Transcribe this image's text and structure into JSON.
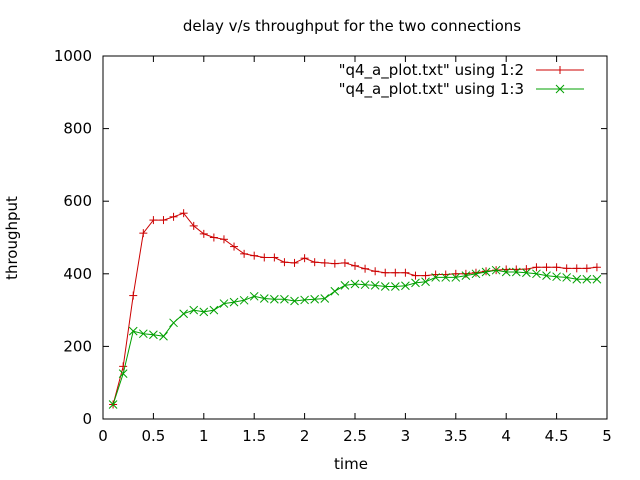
{
  "chart_data": {
    "type": "line",
    "title": "delay v/s throughput for the two connections",
    "xlabel": "time",
    "ylabel": "throughput",
    "xlim": [
      0,
      5
    ],
    "ylim": [
      0,
      1000
    ],
    "xticks": [
      0,
      0.5,
      1,
      1.5,
      2,
      2.5,
      3,
      3.5,
      4,
      4.5,
      5
    ],
    "xtick_labels": [
      "0",
      "0.5",
      "1",
      "1.5",
      "2",
      "2.5",
      "3",
      "3.5",
      "4",
      "4.5",
      "5"
    ],
    "yticks": [
      0,
      200,
      400,
      600,
      800,
      1000
    ],
    "ytick_labels": [
      "0",
      "200",
      "400",
      "600",
      "800",
      "1000"
    ],
    "grid": false,
    "legend_position": "top-right",
    "series": [
      {
        "name": "\"q4_a_plot.txt\" using 1:2",
        "color": "#cc0000",
        "marker": "plus",
        "x": [
          0.1,
          0.2,
          0.3,
          0.4,
          0.5,
          0.6,
          0.7,
          0.8,
          0.9,
          1.0,
          1.1,
          1.2,
          1.3,
          1.4,
          1.5,
          1.6,
          1.7,
          1.8,
          1.9,
          2.0,
          2.1,
          2.2,
          2.3,
          2.4,
          2.5,
          2.6,
          2.7,
          2.8,
          2.9,
          3.0,
          3.1,
          3.2,
          3.3,
          3.4,
          3.5,
          3.6,
          3.7,
          3.8,
          3.9,
          4.0,
          4.1,
          4.2,
          4.3,
          4.4,
          4.5,
          4.6,
          4.7,
          4.8,
          4.9
        ],
        "y": [
          40,
          145,
          340,
          512,
          548,
          548,
          557,
          567,
          532,
          510,
          500,
          495,
          475,
          455,
          450,
          445,
          445,
          432,
          430,
          443,
          432,
          430,
          428,
          430,
          422,
          414,
          407,
          403,
          403,
          403,
          395,
          395,
          398,
          398,
          400,
          400,
          403,
          407,
          410,
          412,
          412,
          413,
          418,
          418,
          418,
          415,
          415,
          415,
          418
        ]
      },
      {
        "name": "\"q4_a_plot.txt\" using 1:3",
        "color": "#00a000",
        "marker": "x",
        "x": [
          0.1,
          0.2,
          0.3,
          0.4,
          0.5,
          0.6,
          0.7,
          0.8,
          0.9,
          1.0,
          1.1,
          1.2,
          1.3,
          1.4,
          1.5,
          1.6,
          1.7,
          1.8,
          1.9,
          2.0,
          2.1,
          2.2,
          2.3,
          2.4,
          2.5,
          2.6,
          2.7,
          2.8,
          2.9,
          3.0,
          3.1,
          3.2,
          3.3,
          3.4,
          3.5,
          3.6,
          3.7,
          3.8,
          3.9,
          4.0,
          4.1,
          4.2,
          4.3,
          4.4,
          4.5,
          4.6,
          4.7,
          4.8,
          4.9
        ],
        "y": [
          40,
          125,
          242,
          235,
          232,
          228,
          265,
          290,
          300,
          295,
          300,
          318,
          322,
          327,
          338,
          332,
          330,
          330,
          325,
          328,
          330,
          332,
          352,
          368,
          372,
          370,
          368,
          365,
          365,
          367,
          375,
          378,
          390,
          390,
          390,
          395,
          400,
          405,
          410,
          405,
          405,
          403,
          400,
          395,
          392,
          390,
          385,
          385,
          385
        ]
      }
    ]
  }
}
